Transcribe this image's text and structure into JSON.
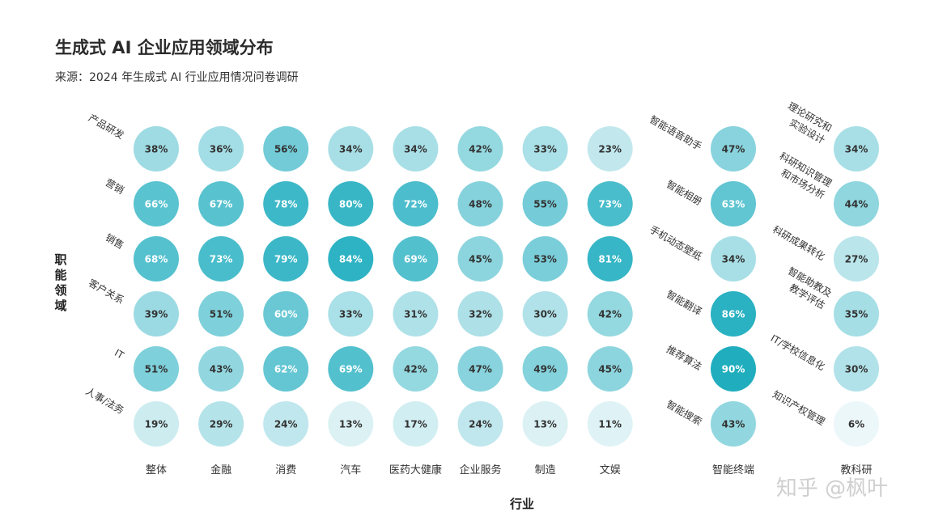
{
  "chart_data": {
    "type": "heatmap",
    "title": "生成式 AI 企业应用领域分布",
    "subtitle": "来源：2024 年生成式 AI 行业应用情况问卷调研",
    "xlabel": "行业",
    "ylabel": "职能领域",
    "value_unit": "%",
    "rows": [
      "产品研发",
      "营销",
      "销售",
      "客户关系",
      "IT",
      "人事/法务"
    ],
    "columns": [
      "整体",
      "金融",
      "消费",
      "汽车",
      "医药大健康",
      "企业服务",
      "制造",
      "文娱"
    ],
    "values": [
      [
        38,
        36,
        56,
        34,
        34,
        42,
        33,
        23
      ],
      [
        66,
        67,
        78,
        80,
        72,
        48,
        55,
        73
      ],
      [
        68,
        73,
        79,
        84,
        69,
        45,
        53,
        81
      ],
      [
        39,
        51,
        60,
        33,
        31,
        32,
        30,
        42
      ],
      [
        51,
        43,
        62,
        69,
        42,
        47,
        49,
        45
      ],
      [
        19,
        29,
        24,
        13,
        17,
        24,
        13,
        11
      ]
    ],
    "side_panels": [
      {
        "column": "智能终端",
        "row_labels": [
          "智能语音助手",
          "智能相册",
          "手机动态壁纸",
          "智能翻译",
          "推荐算法",
          "智能搜索"
        ],
        "values": [
          47,
          63,
          34,
          86,
          90,
          43
        ]
      },
      {
        "column": "教科研",
        "row_labels": [
          "理论研究和\n实验设计",
          "科研知识管理\n和市场分析",
          "科研成果转化",
          "智能助教及\n教学评估",
          "IT/学校信息化",
          "知识产权管理"
        ],
        "values": [
          34,
          44,
          27,
          35,
          30,
          6
        ]
      }
    ],
    "colors": {
      "low": "#eef8fa",
      "high": "#1bacbe",
      "dark_text": "#333333",
      "light_text": "#ffffff"
    }
  },
  "watermark": "知乎 @枫叶"
}
